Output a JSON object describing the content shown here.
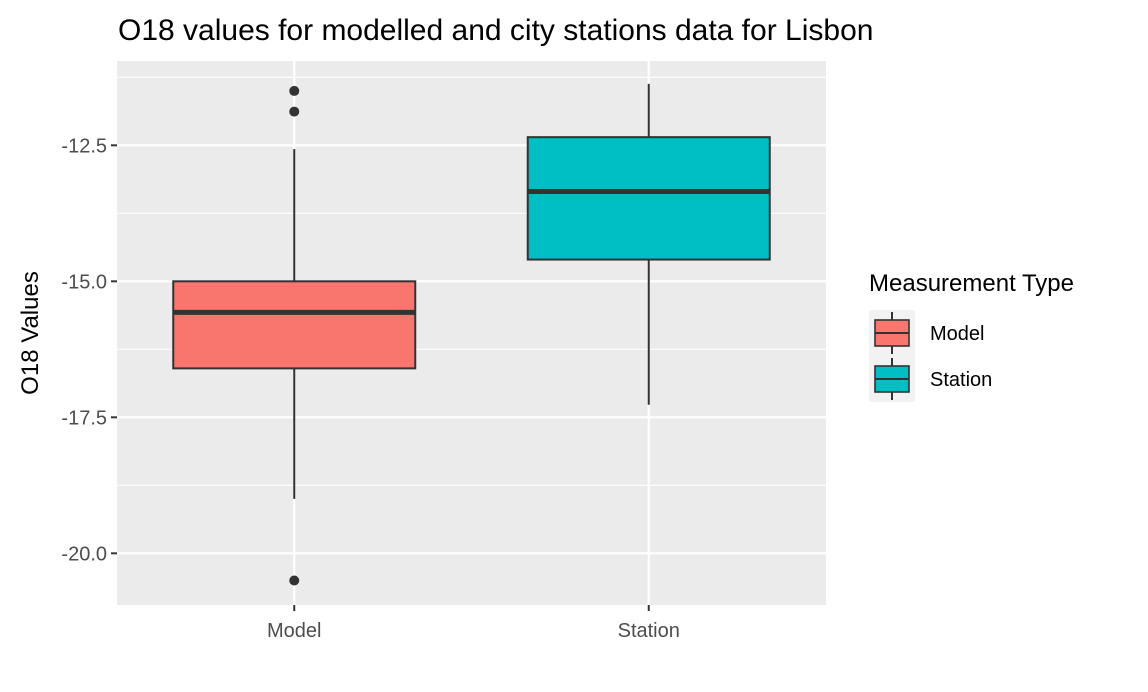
{
  "chart_data": {
    "type": "boxplot",
    "title": "O18 values for modelled and city stations data for Lisbon",
    "xlabel": "",
    "ylabel": "O18 Values",
    "ylim": [
      -20.95,
      -10.95
    ],
    "y_ticks": [
      -12.5,
      -15.0,
      -17.5,
      -20.0
    ],
    "y_tick_labels": [
      "-12.5",
      "-15.0",
      "-17.5",
      "-20.0"
    ],
    "y_minor_ticks": [
      -11.25,
      -13.75,
      -16.25,
      -18.75
    ],
    "grid": true,
    "categories": [
      "Model",
      "Station"
    ],
    "series": [
      {
        "name": "Model",
        "color": "#F8766D",
        "whisker_low": -19.0,
        "q1": -16.6,
        "median": -15.57,
        "q3": -15.0,
        "whisker_high": -12.57,
        "outliers": [
          -11.5,
          -11.88,
          -20.5
        ]
      },
      {
        "name": "Station",
        "color": "#00BFC4",
        "whisker_low": -17.27,
        "q1": -14.6,
        "median": -13.35,
        "q3": -12.35,
        "whisker_high": -11.37,
        "outliers": []
      }
    ],
    "legend": {
      "title": "Measurement Type",
      "position": "right",
      "entries": [
        "Model",
        "Station"
      ]
    },
    "colors": {
      "panel_background": "#EBEBEB",
      "grid": "#FFFFFF",
      "box_border": "#333333",
      "outlier": "#333333"
    }
  }
}
